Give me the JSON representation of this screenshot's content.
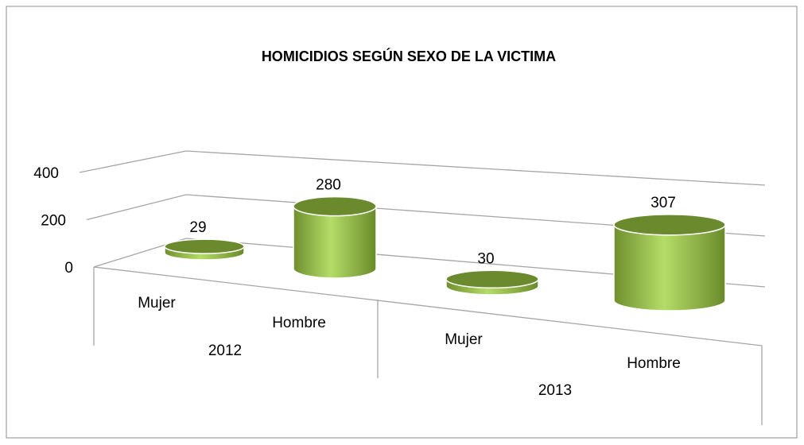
{
  "chart_data": {
    "type": "bar3d",
    "title": "HOMICIDIOS SEGÚN SEXO DE LA   VICTIMA",
    "categories": [
      "Mujer",
      "Hombre",
      "Mujer",
      "Hombre"
    ],
    "groups": [
      "2012",
      "2013"
    ],
    "values": [
      29,
      280,
      30,
      307
    ],
    "color": "#9bbb59",
    "ylim": [
      0,
      400
    ],
    "yticks": [
      0,
      200,
      400
    ],
    "grid": true
  }
}
